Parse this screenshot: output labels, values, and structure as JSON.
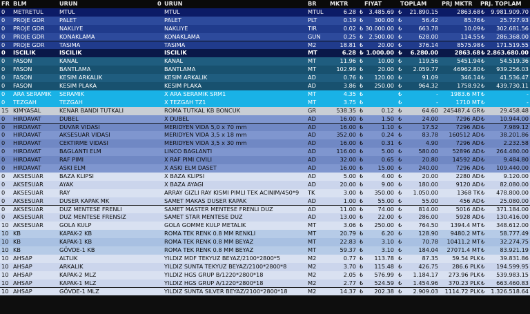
{
  "headers": {
    "fr": "FR",
    "blm": "BLM",
    "urun": "URUN",
    "zero": "0",
    "urun2": "URUN",
    "br": "BR",
    "mktr": "MKTR",
    "fiyat": "FIYAT",
    "toplam": "TOPLAM",
    "prj_mktr": "PRJ MKTR",
    "prj_toplam": "PRJ. TOPLAM"
  },
  "currency_symbol": "₺",
  "row_colors": {
    "navy": {
      "bg": "#0c1b66",
      "fg": "#ffffff"
    },
    "blue_light": {
      "bg": "#2d4a9c",
      "fg": "#ffffff"
    },
    "blue_dark": {
      "bg": "#203b8c",
      "fg": "#ffffff"
    },
    "iscilik": {
      "bg": "#0a1848",
      "fg": "#ffffff"
    },
    "fason_light": {
      "bg": "#1f5d7f",
      "fg": "#ffffff"
    },
    "fason_dark": {
      "bg": "#18516f",
      "fg": "#ffffff"
    },
    "cyan": {
      "bg": "#19b2e6",
      "fg": "#ffffff"
    },
    "gray": {
      "bg": "#c9ced5",
      "fg": "#101010"
    },
    "mid_light": {
      "bg": "#7f96cf",
      "fg": "#0a0a0a"
    },
    "mid_dark": {
      "bg": "#7088c4",
      "fg": "#0a0a0a"
    },
    "pale_light": {
      "bg": "#d9e1f1",
      "fg": "#0a0a0a"
    },
    "pale_dark": {
      "bg": "#cbd5ec",
      "fg": "#0a0a0a"
    },
    "kb_light": {
      "bg": "#b6cbe7",
      "fg": "#0a0a0a"
    },
    "kb_dark": {
      "bg": "#a8c0e2",
      "fg": "#0a0a0a"
    }
  },
  "rows": [
    {
      "style": "navy",
      "fr": "0",
      "blm": "METRETUL",
      "urun": "MTUL",
      "urun2": "MTUL",
      "br": "MTUL",
      "mktr": "6.28",
      "fiyat": "3.485.69",
      "toplam": "21.890.15",
      "prj_mktr": "2863.68",
      "prj_toplam": "9.981.909.70"
    },
    {
      "style": "blue_light",
      "fr": "0",
      "blm": "PROJE GDR",
      "urun": "PALET",
      "urun2": "PALET",
      "br": "PLT",
      "mktr": "0.19",
      "fiyat": "300.00",
      "toplam": "56.42",
      "prj_mktr": "85.76",
      "prj_toplam": "25.727.93"
    },
    {
      "style": "blue_dark",
      "fr": "0",
      "blm": "PROJE GDR",
      "urun": "NAKLIYE",
      "urun2": "NAKLIYE",
      "br": "TIR",
      "mktr": "0.02",
      "fiyat": "30.000.00",
      "toplam": "663.78",
      "prj_mktr": "10.09",
      "prj_toplam": "302.681.56"
    },
    {
      "style": "blue_light",
      "fr": "0",
      "blm": "PROJE GDR",
      "urun": "KONAKLAMA",
      "urun2": "KONAKLAMA",
      "br": "GUN",
      "mktr": "0.25",
      "fiyat": "2.500.00",
      "toplam": "628.00",
      "prj_mktr": "114.55",
      "prj_toplam": "286.368.00"
    },
    {
      "style": "blue_dark",
      "fr": "0",
      "blm": "PROJE GDR",
      "urun": "TASIMA",
      "urun2": "TASIMA",
      "br": "M2",
      "mktr": "18.81",
      "fiyat": "20.00",
      "toplam": "376.14",
      "prj_mktr": "8575.98",
      "prj_toplam": "171.519.55"
    },
    {
      "style": "iscilik",
      "bold": true,
      "fr": "0",
      "blm": "ISCILIK",
      "urun": "ISCILIK",
      "urun2": "ISCILIK",
      "br": "MT",
      "mktr": "6.28",
      "fiyat": "1.000.00",
      "toplam": "6.280.00",
      "prj_mktr": "2863.68",
      "prj_toplam": "2.863.680.00"
    },
    {
      "style": "fason_light",
      "fr": "0",
      "blm": "FASON",
      "urun": "KANAL",
      "urun2": "KANAL",
      "br": "MT",
      "mktr": "11.96",
      "fiyat": "10.00",
      "toplam": "119.56",
      "prj_mktr": "5451.94",
      "prj_toplam": "54.519.36"
    },
    {
      "style": "fason_dark",
      "fr": "0",
      "blm": "FASON",
      "urun": "BANTLAMA",
      "urun2": "BANTLAMA",
      "br": "MT",
      "mktr": "102.99",
      "fiyat": "20.00",
      "toplam": "2.059.77",
      "prj_mktr": "46962.80",
      "prj_toplam": "939.256.03"
    },
    {
      "style": "fason_light",
      "fr": "0",
      "blm": "FASON",
      "urun": "KESIM ARKALIK",
      "urun2": "KESIM ARKALIK",
      "br": "AD",
      "mktr": "0.76",
      "fiyat": "120.00",
      "toplam": "91.09",
      "prj_mktr": "346.14",
      "prj_toplam": "41.536.47"
    },
    {
      "style": "fason_dark",
      "fr": "0",
      "blm": "FASON",
      "urun": "KESIM PLAKA",
      "urun2": "KESIM PLAKA",
      "br": "AD",
      "mktr": "3.86",
      "fiyat": "250.00",
      "toplam": "964.32",
      "prj_mktr": "1758.92",
      "prj_toplam": "439.730.11"
    },
    {
      "style": "cyan",
      "fr": "0",
      "blm": "ARA SERAMIK",
      "urun": "SERAMIK",
      "urun2": "X ARA SERAMIK SRM1",
      "br": "MT",
      "mktr": "4.35",
      "fiyat": "",
      "toplam": "-",
      "prj_mktr": "1983.6 MT",
      "prj_toplam": "-"
    },
    {
      "style": "cyan",
      "fr": "0",
      "blm": "TEZGAH",
      "urun": "TEZGAH",
      "urun2": "X TEZGAH TZ1",
      "br": "MT",
      "mktr": "3.75",
      "fiyat": "",
      "toplam": "-",
      "prj_mktr": "1710 MT",
      "prj_toplam": "-"
    },
    {
      "style": "gray",
      "fr": "15",
      "blm": "KIMYASAL",
      "urun": "KENAR BANDI TUTKALI",
      "urun2": "ROMA TUTKAL KB BONCUK",
      "br": "GR",
      "mktr": "538.35",
      "fiyat": "0.12",
      "toplam": "64.60",
      "prj_mktr": "245487.4 GR",
      "prj_toplam": "29.458.48"
    },
    {
      "style": "mid_light",
      "fr": "0",
      "blm": "HIRDAVAT",
      "urun": "DUBEL",
      "urun2": "X DUBEL",
      "br": "AD",
      "mktr": "16.00",
      "fiyat": "1.50",
      "toplam": "24.00",
      "prj_mktr": "7296 AD",
      "prj_toplam": "10.944.00"
    },
    {
      "style": "mid_dark",
      "fr": "0",
      "blm": "HIRDAVAT",
      "urun": "DUVAR VIDASI",
      "urun2": "MERIDYEN VIDA 5,0 x 70 mm",
      "br": "AD",
      "mktr": "16.00",
      "fiyat": "1.10",
      "toplam": "17.52",
      "prj_mktr": "7296 AD",
      "prj_toplam": "7.989.12"
    },
    {
      "style": "mid_light",
      "fr": "0",
      "blm": "HIRDAVAT",
      "urun": "AKSESUAR VIDASI",
      "urun2": "MERIDYEN VIDA 3,5 x 18 mm",
      "br": "AD",
      "mktr": "352.00",
      "fiyat": "0.24",
      "toplam": "83.78",
      "prj_mktr": "160512 AD",
      "prj_toplam": "38.201.86"
    },
    {
      "style": "mid_dark",
      "fr": "0",
      "blm": "HIRDAVAT",
      "urun": "CEKTIRME VIDASI",
      "urun2": "MERIDYEN VIDA 3,5 x 30 mm",
      "br": "AD",
      "mktr": "16.00",
      "fiyat": "0.31",
      "toplam": "4.90",
      "prj_mktr": "7296 AD",
      "prj_toplam": "2.232.58"
    },
    {
      "style": "mid_light",
      "fr": "0",
      "blm": "HIRDAVAT",
      "urun": "BAGLANTI ELM",
      "urun2": "LINCO BAGLANTI",
      "br": "AD",
      "mktr": "116.00",
      "fiyat": "5.00",
      "toplam": "580.00",
      "prj_mktr": "52896 AD",
      "prj_toplam": "264.480.00"
    },
    {
      "style": "mid_dark",
      "fr": "0",
      "blm": "HIRDAVAT",
      "urun": "RAF PIMI",
      "urun2": "X RAF PIMI CIVILI",
      "br": "AD",
      "mktr": "32.00",
      "fiyat": "0.65",
      "toplam": "20.80",
      "prj_mktr": "14592 AD",
      "prj_toplam": "9.484.80"
    },
    {
      "style": "mid_light",
      "fr": "0",
      "blm": "HIRDAVAT",
      "urun": "ASKI ELM",
      "urun2": "X ASKI ELM DASET",
      "br": "AD",
      "mktr": "16.00",
      "fiyat": "15.00",
      "toplam": "240.00",
      "prj_mktr": "7296 AD",
      "prj_toplam": "109.440.00"
    },
    {
      "style": "pale_light",
      "fr": "0",
      "blm": "AKSESUAR",
      "urun": "BAZA KLIPSI",
      "urun2": "X BAZA KLIPSI",
      "br": "AD",
      "mktr": "5.00",
      "fiyat": "4.00",
      "toplam": "20.00",
      "prj_mktr": "2280 AD",
      "prj_toplam": "9.120.00"
    },
    {
      "style": "pale_dark",
      "fr": "0",
      "blm": "AKSESUAR",
      "urun": "AYAK",
      "urun2": "X BAZA AYAGI",
      "br": "AD",
      "mktr": "20.00",
      "fiyat": "9.00",
      "toplam": "180.00",
      "prj_mktr": "9120 AD",
      "prj_toplam": "82.080.00"
    },
    {
      "style": "pale_light",
      "fr": "0",
      "blm": "AKSESUAR",
      "urun": "RAY",
      "urun2": "ARRAY GIZLI RAY KISMI PIMLI TEK ACINIM/450*9",
      "br": "TK",
      "mktr": "3.00",
      "fiyat": "350.00",
      "toplam": "1.050.00",
      "prj_mktr": "1368 TK",
      "prj_toplam": "478.800.00"
    },
    {
      "style": "pale_dark",
      "fr": "0",
      "blm": "AKSESUAR",
      "urun": "DUSER KAPAK MK",
      "urun2": "SAMET MAKAS DUSER KAPAK",
      "br": "AD",
      "mktr": "1.00",
      "fiyat": "55.00",
      "toplam": "55.00",
      "prj_mktr": "456 AD",
      "prj_toplam": "25.080.00"
    },
    {
      "style": "pale_light",
      "fr": "0",
      "blm": "AKSESUAR",
      "urun": "DUZ MENTESE FRENLI",
      "urun2": "SAMET MASTER MENTESE FRENLI DUZ",
      "br": "AD",
      "mktr": "11.00",
      "fiyat": "74.00",
      "toplam": "814.00",
      "prj_mktr": "5016 AD",
      "prj_toplam": "371.184.00"
    },
    {
      "style": "pale_dark",
      "fr": "0",
      "blm": "AKSESUAR",
      "urun": "DUZ MENTESE FRENSIZ",
      "urun2": "SAMET STAR MENTESE DUZ",
      "br": "AD",
      "mktr": "13.00",
      "fiyat": "22.00",
      "toplam": "286.00",
      "prj_mktr": "5928 AD",
      "prj_toplam": "130.416.00"
    },
    {
      "style": "pale_light",
      "fr": "10",
      "blm": "AKSESUAR",
      "urun": "GOLA KULP",
      "urun2": "GOLA GOMME KULP  METALIK",
      "br": "MT",
      "mktr": "3.06",
      "fiyat": "250.00",
      "toplam": "764.50",
      "prj_mktr": "1394.4 MT",
      "prj_toplam": "348.612.00"
    },
    {
      "style": "kb_light",
      "fr": "10",
      "blm": "KB",
      "urun": "KAPAK-2 KB",
      "urun2": "ROMA TEK RENK 0.8 MM RENKLI",
      "br": "MT",
      "mktr": "20.79",
      "fiyat": "6.20",
      "toplam": "128.90",
      "prj_mktr": "9480.2 MT",
      "prj_toplam": "58.777.49"
    },
    {
      "style": "kb_dark",
      "fr": "10",
      "blm": "KB",
      "urun": "KAPAK-1 KB",
      "urun2": "ROMA TEK RENK 0.8 MM BEYAZ",
      "br": "MT",
      "mktr": "22.83",
      "fiyat": "3.10",
      "toplam": "70.78",
      "prj_mktr": "10411.2 MT",
      "prj_toplam": "32.274.75"
    },
    {
      "style": "kb_light",
      "fr": "10",
      "blm": "KB",
      "urun": "GÖVDE-1 KB",
      "urun2": "ROMA TEK RENK 0.8 MM BEYAZ",
      "br": "MT",
      "mktr": "59.37",
      "fiyat": "3.10",
      "toplam": "184.04",
      "prj_mktr": "27071.4 MT",
      "prj_toplam": "83.921.19"
    },
    {
      "style": "pale_light",
      "fr": "10",
      "blm": "AHSAP",
      "urun": "ALTLIK",
      "urun2": "YILDIZ MDF TEKYUZ BEYAZ/2100*2800*5",
      "br": "M2",
      "mktr": "0.77",
      "fiyat": "113.78",
      "toplam": "87.35",
      "prj_mktr": "59.54 PLK",
      "prj_toplam": "39.831.86"
    },
    {
      "style": "pale_dark",
      "fr": "10",
      "blm": "AHSAP",
      "urun": "ARKALIK",
      "urun2": "YILDIZ SUNTA TEKYUZ BEYAZ/2100*2800*8",
      "br": "M2",
      "mktr": "3.70",
      "fiyat": "115.48",
      "toplam": "426.75",
      "prj_mktr": "286.6 PLK",
      "prj_toplam": "194.599.95"
    },
    {
      "style": "pale_light",
      "fr": "10",
      "blm": "AHSAP",
      "urun": "KAPAK-2 MLZ",
      "urun2": "YILDIZ HGS  GRUP B/1220*2800*18",
      "br": "M2",
      "mktr": "2.05",
      "fiyat": "576.99",
      "toplam": "1.184.17",
      "prj_mktr": "273.96 PLK",
      "prj_toplam": "539.983.15"
    },
    {
      "style": "pale_dark",
      "fr": "10",
      "blm": "AHSAP",
      "urun": "KAPAK-1 MLZ",
      "urun2": "YILDIZ HGS  GRUP A/1220*2800*18",
      "br": "M2",
      "mktr": "2.77",
      "fiyat": "524.59",
      "toplam": "1.454.96",
      "prj_mktr": "370.23 PLK",
      "prj_toplam": "663.460.83"
    },
    {
      "style": "pale_light",
      "fr": "10",
      "blm": "AHSAP",
      "urun": "GÖVDE-1 MLZ",
      "urun2": "YILDIZ SUNTA SILVER BEYAZ/2100*2800*18",
      "br": "M2",
      "mktr": "14.37",
      "fiyat": "202.38",
      "toplam": "2.909.03",
      "prj_mktr": "1114.72 PLK",
      "prj_toplam": "1.326.518.64"
    }
  ]
}
